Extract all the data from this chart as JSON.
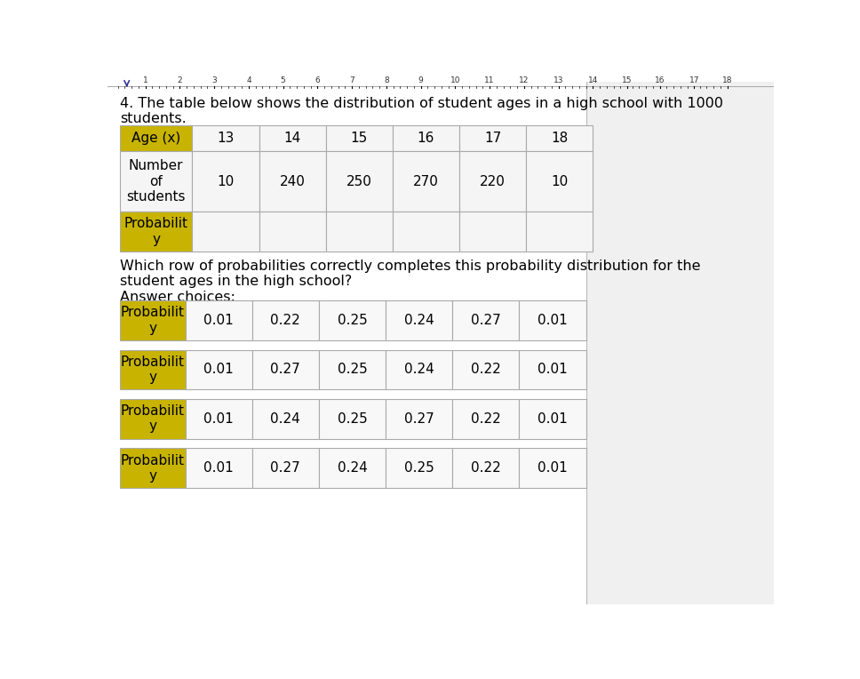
{
  "background_color": "#f0f0f0",
  "page_bg": "#ffffff",
  "question_number": "4.",
  "question_text": "The table below shows the distribution of student ages in a high school with 1000\nstudents.",
  "main_table": {
    "header_label": "Age (x)",
    "ages": [
      "13",
      "14",
      "15",
      "16",
      "17",
      "18"
    ],
    "row2_label": "Number\nof\nstudents",
    "counts": [
      "10",
      "240",
      "250",
      "270",
      "220",
      "10"
    ],
    "row3_label": "Probabilit\ny",
    "header_bg": "#c8b400",
    "row3_bg": "#c8b400",
    "cell_bg": "#f5f5f5",
    "border_color": "#aaaaaa"
  },
  "between_text": "Which row of probabilities correctly completes this probability distribution for the\nstudent ages in the high school?",
  "answer_label": "Answer choices:",
  "answer_tables": [
    {
      "label": "Probabilit\ny",
      "values": [
        "0.01",
        "0.22",
        "0.25",
        "0.24",
        "0.27",
        "0.01"
      ],
      "label_bg": "#c8b400"
    },
    {
      "label": "Probabilit\ny",
      "values": [
        "0.01",
        "0.27",
        "0.25",
        "0.24",
        "0.22",
        "0.01"
      ],
      "label_bg": "#c8b400"
    },
    {
      "label": "Probabilit\ny",
      "values": [
        "0.01",
        "0.24",
        "0.25",
        "0.27",
        "0.22",
        "0.01"
      ],
      "label_bg": "#c8b400"
    },
    {
      "label": "Probabilit\ny",
      "values": [
        "0.01",
        "0.27",
        "0.24",
        "0.25",
        "0.22",
        "0.01"
      ],
      "label_bg": "#c8b400"
    }
  ],
  "ruler_numbers": [
    "1",
    "2",
    "3",
    "4",
    "5",
    "6",
    "7",
    "8",
    "9",
    "10",
    "11",
    "12",
    "13",
    "14",
    "15",
    "16",
    "17",
    "18"
  ],
  "ruler_x_positions": [
    55,
    105,
    155,
    205,
    255,
    305,
    355,
    405,
    455,
    505,
    555,
    605,
    655,
    705,
    755,
    802,
    852,
    900
  ],
  "font_size_question": 11.5,
  "font_size_table": 11,
  "font_size_answer": 11
}
